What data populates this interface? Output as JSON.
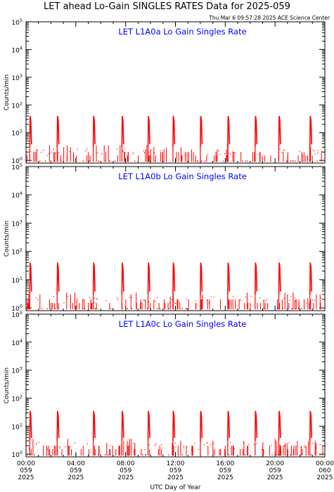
{
  "page": {
    "title": "LET ahead Lo-Gain SINGLES RATES Data for 2025-059",
    "timestamp": "Thu Mar  6 09:57:28 2025 ACE Science Center"
  },
  "colors": {
    "data": "#ff0000",
    "panel_title": "#0000ff",
    "axis": "#000000"
  },
  "chart_data": [
    {
      "type": "line",
      "title": "LET L1A0a Lo Gain Singles Rate",
      "ylabel": "Counts/min",
      "yscale": "log",
      "ylim": [
        0.8,
        100000
      ],
      "yticks": [
        "10^0",
        "10^1",
        "10^2",
        "10^3",
        "10^4",
        "10^5"
      ],
      "xlim": [
        "2025-059 00:00",
        "2025-060 00:00"
      ],
      "spike_times_hours": [
        0.3,
        2.5,
        5.4,
        7.7,
        9.8,
        11.8,
        14.0,
        16.2,
        18.4,
        20.3,
        22.8
      ],
      "spike_peak": 40,
      "spike_floor": 3,
      "baseline": 1
    },
    {
      "type": "line",
      "title": "LET L1A0b Lo Gain Singles Rate",
      "ylabel": "Counts/min",
      "yscale": "log",
      "ylim": [
        0.8,
        100000
      ],
      "yticks": [
        "10^0",
        "10^1",
        "10^2",
        "10^3",
        "10^4",
        "10^5"
      ],
      "xlim": [
        "2025-059 00:00",
        "2025-060 00:00"
      ],
      "spike_times_hours": [
        0.3,
        2.5,
        5.4,
        7.7,
        9.8,
        11.8,
        14.0,
        16.2,
        18.4,
        20.3,
        22.8
      ],
      "spike_peak": 40,
      "spike_floor": 3,
      "baseline": 1
    },
    {
      "type": "line",
      "title": "LET L1A0c Lo Gain Singles Rate",
      "ylabel": "Counts/min",
      "yscale": "log",
      "ylim": [
        0.8,
        100000
      ],
      "yticks": [
        "10^0",
        "10^1",
        "10^2",
        "10^3",
        "10^4",
        "10^5"
      ],
      "xlim": [
        "2025-059 00:00",
        "2025-060 00:00"
      ],
      "spike_times_hours": [
        0.3,
        2.5,
        5.4,
        7.7,
        9.8,
        11.8,
        14.0,
        16.2,
        18.4,
        20.3,
        22.8
      ],
      "spike_peak": 35,
      "spike_floor": 3,
      "baseline": 1
    }
  ],
  "x_axis": {
    "label": "UTC Day of Year",
    "ticks": [
      {
        "time": "00:00",
        "doy": "059",
        "year": "2025"
      },
      {
        "time": "04:00",
        "doy": "059",
        "year": "2025"
      },
      {
        "time": "08:00",
        "doy": "059",
        "year": "2025"
      },
      {
        "time": "12:00",
        "doy": "059",
        "year": "2025"
      },
      {
        "time": "16:00",
        "doy": "059",
        "year": "2025"
      },
      {
        "time": "20:00",
        "doy": "059",
        "year": "2025"
      },
      {
        "time": "00:00",
        "doy": "060",
        "year": "2025"
      }
    ]
  }
}
